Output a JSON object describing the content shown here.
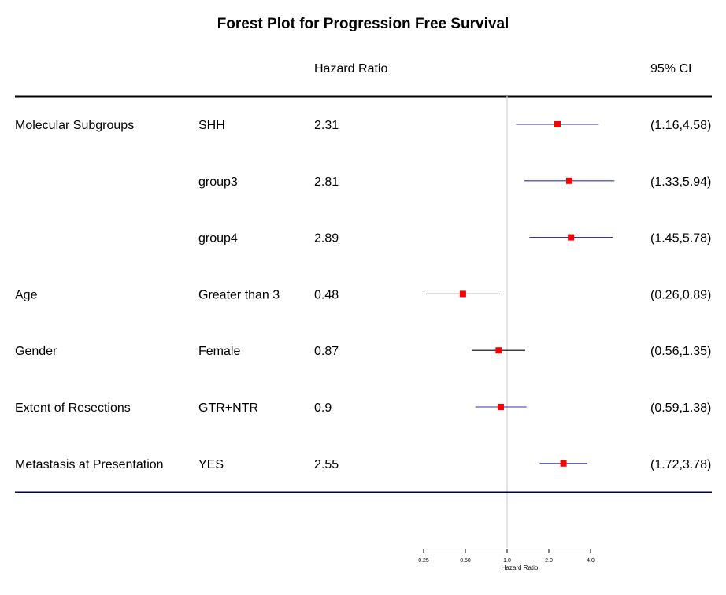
{
  "chart_data": {
    "type": "forest",
    "title": "Forest Plot for Progression Free Survival",
    "columns": {
      "estimate": "Hazard Ratio",
      "ci": "95% CI"
    },
    "rows": [
      {
        "group": "Molecular Subgroups",
        "level": "SHH",
        "hr_text": "2.31",
        "ci_text": "(1.16,4.58)",
        "hr": 2.31,
        "lower": 1.16,
        "upper": 4.58,
        "ci_color": "#3333aa"
      },
      {
        "group": "",
        "level": "group3",
        "hr_text": "2.81",
        "ci_text": "(1.33,5.94)",
        "hr": 2.81,
        "lower": 1.33,
        "upper": 5.94,
        "ci_color": "#3333aa"
      },
      {
        "group": "",
        "level": "group4",
        "hr_text": "2.89",
        "ci_text": "(1.45,5.78)",
        "hr": 2.89,
        "lower": 1.45,
        "upper": 5.78,
        "ci_color": "#3333aa"
      },
      {
        "group": "Age",
        "level": "Greater than 3",
        "hr_text": "0.48",
        "ci_text": "(0.26,0.89)",
        "hr": 0.48,
        "lower": 0.26,
        "upper": 0.89,
        "ci_color": "#000000"
      },
      {
        "group": "Gender",
        "level": "Female",
        "hr_text": "0.87",
        "ci_text": "(0.56,1.35)",
        "hr": 0.87,
        "lower": 0.56,
        "upper": 1.35,
        "ci_color": "#000000"
      },
      {
        "group": "Extent of Resections",
        "level": "GTR+NTR",
        "hr_text": "0.9",
        "ci_text": "(0.59,1.38)",
        "hr": 0.9,
        "lower": 0.59,
        "upper": 1.38,
        "ci_color": "#3333aa"
      },
      {
        "group": "Metastasis at Presentation",
        "level": "YES",
        "hr_text": "2.55",
        "ci_text": "(1.72,3.78)",
        "hr": 2.55,
        "lower": 1.72,
        "upper": 3.78,
        "ci_color": "#3333aa"
      }
    ],
    "x_axis": {
      "label": "Hazard Ratio",
      "scale": "log",
      "ticks": [
        0.25,
        0.5,
        1.0,
        2.0,
        4.0
      ],
      "tick_labels": [
        "0.25",
        "0.50",
        "1.0",
        "2.0",
        "4.0"
      ],
      "reference_line": 1.0
    },
    "colors": {
      "point": "#ff0000",
      "reference_line": "#d3d3d3",
      "top_rule": "#000000",
      "bottom_rule": "#000033"
    }
  }
}
